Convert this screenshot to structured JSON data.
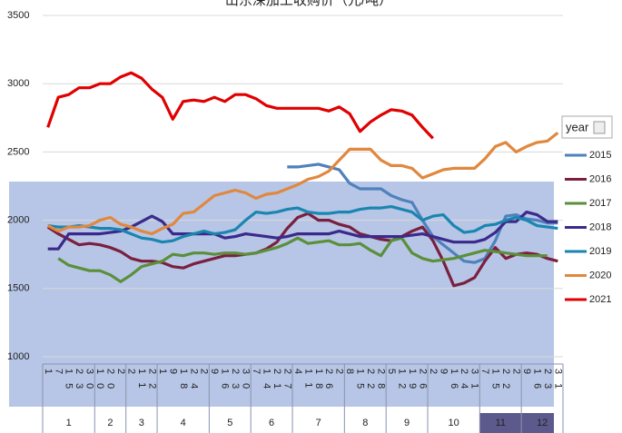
{
  "chart_data": {
    "type": "line",
    "title": "山东深加工收购价（元/吨）",
    "legend_title": "year",
    "legend": "right",
    "grid": true,
    "ylim": [
      1000,
      3500
    ],
    "yticks": [
      1000,
      1500,
      2000,
      2500,
      3000,
      3500
    ],
    "categories": [
      [
        "1",
        "1"
      ],
      [
        "1",
        "7"
      ],
      [
        "1",
        "15"
      ],
      [
        "1",
        "23"
      ],
      [
        "1",
        "30"
      ],
      [
        "2",
        "10"
      ],
      [
        "2",
        "20"
      ],
      [
        "2",
        "2"
      ],
      [
        "3",
        "2"
      ],
      [
        "3",
        "11"
      ],
      [
        "3",
        "22"
      ],
      [
        "4",
        "1"
      ],
      [
        "4",
        "9"
      ],
      [
        "4",
        "18"
      ],
      [
        "4",
        "24"
      ],
      [
        "4",
        "2"
      ],
      [
        "5",
        "9"
      ],
      [
        "5",
        "16"
      ],
      [
        "5",
        "23"
      ],
      [
        "5",
        "30"
      ],
      [
        "6",
        "7"
      ],
      [
        "6",
        "14"
      ],
      [
        "6",
        "21"
      ],
      [
        "6",
        "27"
      ],
      [
        "7",
        "4"
      ],
      [
        "7",
        "11"
      ],
      [
        "7",
        "18"
      ],
      [
        "7",
        "26"
      ],
      [
        "7",
        "2"
      ],
      [
        "8",
        "8"
      ],
      [
        "8",
        "15"
      ],
      [
        "8",
        "22"
      ],
      [
        "8",
        "28"
      ],
      [
        "9",
        "5"
      ],
      [
        "9",
        "12"
      ],
      [
        "9",
        "19"
      ],
      [
        "9",
        "26"
      ],
      [
        "10",
        "2"
      ],
      [
        "10",
        "9"
      ],
      [
        "10",
        "16"
      ],
      [
        "10",
        "24"
      ],
      [
        "10",
        "31"
      ],
      [
        "11",
        "7"
      ],
      [
        "11",
        "15"
      ],
      [
        "11",
        "22"
      ],
      [
        "11",
        "2"
      ],
      [
        "12",
        "9"
      ],
      [
        "12",
        "16"
      ],
      [
        "12",
        "23"
      ],
      [
        "12",
        "31"
      ]
    ],
    "series": [
      {
        "name": "2015",
        "color": "#4f81bd",
        "values": [
          null,
          null,
          null,
          null,
          null,
          null,
          null,
          null,
          null,
          null,
          null,
          null,
          null,
          null,
          null,
          null,
          null,
          null,
          null,
          null,
          null,
          null,
          null,
          2390,
          2390,
          2400,
          2410,
          2390,
          2370,
          2270,
          2230,
          2230,
          2230,
          2180,
          2150,
          2130,
          2000,
          1880,
          1820,
          1760,
          1700,
          1690,
          1720,
          1850,
          2030,
          2040,
          2010,
          2000,
          1980,
          1980
        ]
      },
      {
        "name": "2016",
        "color": "#7b1f3f",
        "values": [
          1950,
          1900,
          1860,
          1820,
          1830,
          1820,
          1800,
          1770,
          1720,
          1700,
          1700,
          1690,
          1660,
          1650,
          1680,
          1700,
          1720,
          1740,
          1740,
          1750,
          1760,
          1790,
          1840,
          1940,
          2020,
          2050,
          2000,
          2000,
          1970,
          1950,
          1900,
          1880,
          1860,
          1850,
          1880,
          1920,
          1950,
          1850,
          1700,
          1520,
          1540,
          1580,
          1700,
          1800,
          1720,
          1750,
          1760,
          1750,
          1720,
          1700
        ]
      },
      {
        "name": "2017",
        "color": "#5b8f3a",
        "values": [
          null,
          1720,
          1670,
          1650,
          1630,
          1630,
          1600,
          1550,
          1600,
          1660,
          1680,
          1700,
          1750,
          1740,
          1760,
          1760,
          1750,
          1760,
          1760,
          1750,
          1760,
          1780,
          1800,
          1830,
          1870,
          1830,
          1840,
          1850,
          1820,
          1820,
          1830,
          1780,
          1740,
          1850,
          1870,
          1760,
          1720,
          1700,
          1710,
          1720,
          1740,
          1760,
          1780,
          1770,
          1760,
          1750,
          1740,
          1740,
          1740,
          null
        ]
      },
      {
        "name": "2018",
        "color": "#3b2a8c",
        "values": [
          1790,
          1790,
          1900,
          1900,
          1900,
          1900,
          1910,
          1920,
          1950,
          1990,
          2030,
          1990,
          1900,
          1900,
          1900,
          1900,
          1900,
          1870,
          1880,
          1900,
          1890,
          1880,
          1870,
          1880,
          1900,
          1900,
          1900,
          1900,
          1920,
          1900,
          1880,
          1880,
          1880,
          1880,
          1880,
          1890,
          1900,
          1880,
          1860,
          1840,
          1840,
          1840,
          1860,
          1910,
          1990,
          1990,
          2060,
          2040,
          1990,
          1990
        ]
      },
      {
        "name": "2019",
        "color": "#1a86b0",
        "values": [
          1960,
          1950,
          1950,
          1960,
          1950,
          1940,
          1940,
          1930,
          1900,
          1870,
          1860,
          1840,
          1850,
          1880,
          1900,
          1920,
          1900,
          1910,
          1930,
          2000,
          2060,
          2050,
          2060,
          2080,
          2090,
          2060,
          2050,
          2050,
          2060,
          2060,
          2080,
          2090,
          2090,
          2100,
          2080,
          2060,
          2000,
          2030,
          2040,
          1960,
          1910,
          1920,
          1960,
          1970,
          2000,
          2020,
          2000,
          1960,
          1950,
          1940
        ]
      },
      {
        "name": "2020",
        "color": "#e0883e",
        "values": [
          1960,
          1920,
          1950,
          1950,
          1960,
          2000,
          2020,
          1970,
          1950,
          1920,
          1900,
          1940,
          1970,
          2050,
          2060,
          2120,
          2180,
          2200,
          2220,
          2200,
          2160,
          2190,
          2200,
          2230,
          2260,
          2300,
          2320,
          2360,
          2440,
          2520,
          2520,
          2520,
          2440,
          2400,
          2400,
          2380,
          2310,
          2340,
          2370,
          2380,
          2380,
          2380,
          2450,
          2540,
          2570,
          2500,
          2540,
          2570,
          2580,
          2640
        ]
      },
      {
        "name": "2021",
        "color": "#e00000",
        "values": [
          2680,
          2900,
          2920,
          2970,
          2970,
          3000,
          3000,
          3050,
          3080,
          3040,
          2960,
          2900,
          2740,
          2870,
          2880,
          2870,
          2900,
          2870,
          2920,
          2920,
          2890,
          2840,
          2820,
          2820,
          2820,
          2820,
          2820,
          2800,
          2830,
          2780,
          2650,
          2720,
          2770,
          2810,
          2800,
          2770,
          2680,
          2600,
          null,
          null,
          null,
          null,
          null,
          null,
          null,
          null,
          null,
          null,
          null,
          null
        ]
      }
    ]
  }
}
